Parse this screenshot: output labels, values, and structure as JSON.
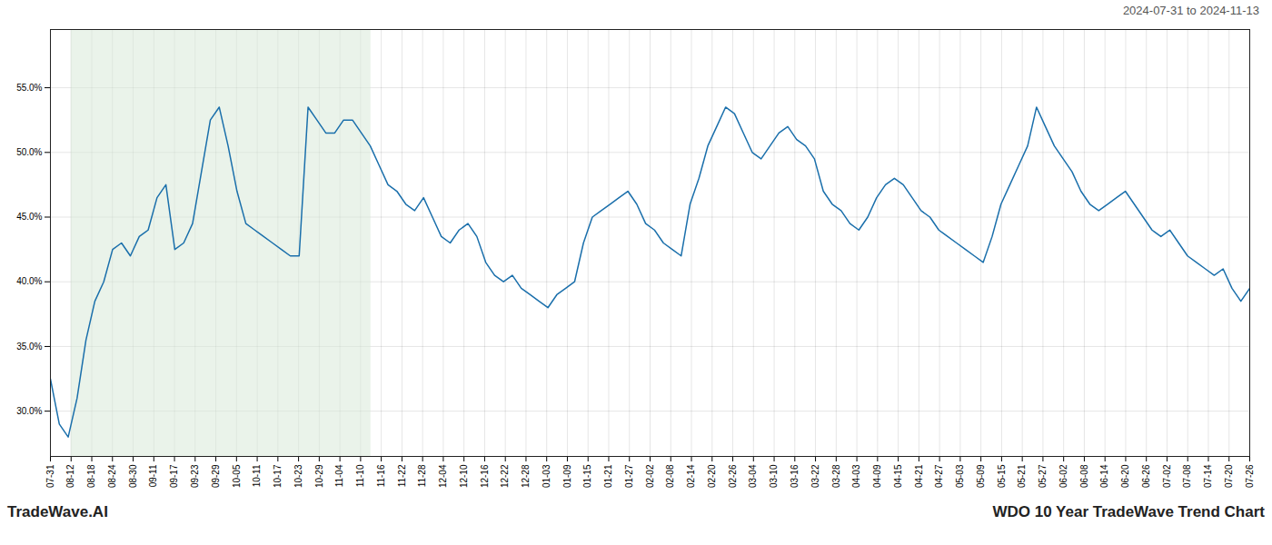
{
  "chart_data": {
    "type": "line",
    "title": "WDO 10 Year TradeWave Trend Chart",
    "subtitle": "2024-07-31 to 2024-11-13",
    "annotations": [
      "TradeWave.AI"
    ],
    "series": [
      {
        "color": "#1a6fab",
        "values": [
          32.5,
          29.0,
          28.0,
          31.0,
          35.5,
          38.5,
          40.0,
          42.5,
          43.0,
          42.0,
          43.5,
          44.0,
          46.5,
          47.5,
          42.5,
          43.0,
          44.5,
          48.5,
          52.5,
          53.5,
          50.5,
          47.0,
          44.5,
          44.0,
          43.5,
          43.0,
          42.5,
          42.0,
          42.0,
          53.5,
          52.5,
          51.5,
          51.5,
          52.5,
          52.5,
          51.5,
          50.5,
          49.0,
          47.5,
          47.0,
          46.0,
          45.5,
          46.5,
          45.0,
          43.5,
          43.0,
          44.0,
          44.5,
          43.5,
          41.5,
          40.5,
          40.0,
          40.5,
          39.5,
          39.0,
          38.5,
          38.0,
          39.0,
          39.5,
          40.0,
          43.0,
          45.0,
          45.5,
          46.0,
          46.5,
          47.0,
          46.0,
          44.5,
          44.0,
          43.0,
          42.5,
          42.0,
          46.0,
          48.0,
          50.5,
          52.0,
          53.5,
          53.0,
          51.5,
          50.0,
          49.5,
          50.5,
          51.5,
          52.0,
          51.0,
          50.5,
          49.5,
          47.0,
          46.0,
          45.5,
          44.5,
          44.0,
          45.0,
          46.5,
          47.5,
          48.0,
          47.5,
          46.5,
          45.5,
          45.0,
          44.0,
          43.5,
          43.0,
          42.5,
          42.0,
          41.5,
          43.5,
          46.0,
          47.5,
          49.0,
          50.5,
          53.5,
          52.0,
          50.5,
          49.5,
          48.5,
          47.0,
          46.0,
          45.5,
          46.0,
          46.5,
          47.0,
          46.0,
          45.0,
          44.0,
          43.5,
          44.0,
          43.0,
          42.0,
          41.5,
          41.0,
          40.5,
          41.0,
          39.5,
          38.5,
          39.5
        ]
      }
    ],
    "xlim": [
      0,
      135
    ],
    "xticks": [
      {
        "value": 0,
        "label": "07-31"
      },
      {
        "value": 2.327586,
        "label": "08-12"
      },
      {
        "value": 4.655172,
        "label": "08-18"
      },
      {
        "value": 6.982759,
        "label": "08-24"
      },
      {
        "value": 9.310345,
        "label": "08-30"
      },
      {
        "value": 11.637931,
        "label": "09-11"
      },
      {
        "value": 13.965517,
        "label": "09-17"
      },
      {
        "value": 16.293103,
        "label": "09-23"
      },
      {
        "value": 18.62069,
        "label": "09-29"
      },
      {
        "value": 20.948276,
        "label": "10-05"
      },
      {
        "value": 23.275862,
        "label": "10-11"
      },
      {
        "value": 25.603448,
        "label": "10-17"
      },
      {
        "value": 27.931034,
        "label": "10-23"
      },
      {
        "value": 30.258621,
        "label": "10-29"
      },
      {
        "value": 32.586207,
        "label": "11-04"
      },
      {
        "value": 34.913793,
        "label": "11-10"
      },
      {
        "value": 37.241379,
        "label": "11-16"
      },
      {
        "value": 39.568966,
        "label": "11-22"
      },
      {
        "value": 41.896552,
        "label": "11-28"
      },
      {
        "value": 44.224138,
        "label": "12-04"
      },
      {
        "value": 46.551724,
        "label": "12-10"
      },
      {
        "value": 48.87931,
        "label": "12-16"
      },
      {
        "value": 51.206897,
        "label": "12-22"
      },
      {
        "value": 53.534483,
        "label": "12-28"
      },
      {
        "value": 55.862069,
        "label": "01-03"
      },
      {
        "value": 58.189655,
        "label": "01-09"
      },
      {
        "value": 60.517241,
        "label": "01-15"
      },
      {
        "value": 62.844828,
        "label": "01-21"
      },
      {
        "value": 65.172414,
        "label": "01-27"
      },
      {
        "value": 67.5,
        "label": "02-02"
      },
      {
        "value": 69.827586,
        "label": "02-08"
      },
      {
        "value": 72.155172,
        "label": "02-14"
      },
      {
        "value": 74.482759,
        "label": "02-20"
      },
      {
        "value": 76.810345,
        "label": "02-26"
      },
      {
        "value": 79.137931,
        "label": "03-04"
      },
      {
        "value": 81.465517,
        "label": "03-10"
      },
      {
        "value": 83.793103,
        "label": "03-16"
      },
      {
        "value": 86.12069,
        "label": "03-22"
      },
      {
        "value": 88.448276,
        "label": "03-28"
      },
      {
        "value": 90.775862,
        "label": "04-03"
      },
      {
        "value": 93.103448,
        "label": "04-09"
      },
      {
        "value": 95.431034,
        "label": "04-15"
      },
      {
        "value": 97.758621,
        "label": "04-21"
      },
      {
        "value": 100.086207,
        "label": "04-27"
      },
      {
        "value": 102.413793,
        "label": "05-03"
      },
      {
        "value": 104.741379,
        "label": "05-09"
      },
      {
        "value": 107.068966,
        "label": "05-15"
      },
      {
        "value": 109.396552,
        "label": "05-21"
      },
      {
        "value": 111.724138,
        "label": "05-27"
      },
      {
        "value": 114.051724,
        "label": "06-02"
      },
      {
        "value": 116.37931,
        "label": "06-08"
      },
      {
        "value": 118.706897,
        "label": "06-14"
      },
      {
        "value": 121.034483,
        "label": "06-20"
      },
      {
        "value": 123.362069,
        "label": "06-26"
      },
      {
        "value": 125.689655,
        "label": "07-02"
      },
      {
        "value": 128.017241,
        "label": "07-08"
      },
      {
        "value": 130.344828,
        "label": "07-14"
      },
      {
        "value": 132.672414,
        "label": "07-20"
      },
      {
        "value": 135,
        "label": "07-26"
      }
    ],
    "ylim": [
      26.5,
      59.5
    ],
    "yticks": [
      {
        "value": 30.0,
        "label": "30.0%"
      },
      {
        "value": 35.0,
        "label": "35.0%"
      },
      {
        "value": 40.0,
        "label": "40.0%"
      },
      {
        "value": 45.0,
        "label": "45.0%"
      },
      {
        "value": 50.0,
        "label": "50.0%"
      },
      {
        "value": 55.0,
        "label": "55.0%"
      }
    ],
    "grid": true,
    "shaded_span": {
      "x": [
        2.327586,
        36.077586
      ],
      "color": "#d8ead8"
    }
  }
}
